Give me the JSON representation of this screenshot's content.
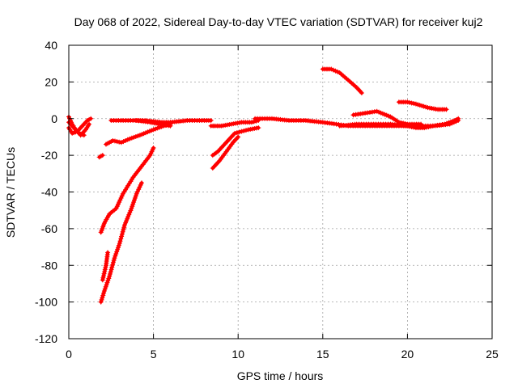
{
  "chart_data": {
    "type": "scatter",
    "title": "Day 068 of 2022, Sidereal Day-to-day VTEC variation (SDTVAR) for receiver kuj2",
    "xlabel": "GPS time / hours",
    "ylabel": "SDTVAR / TECUs",
    "xlim": [
      0,
      25
    ],
    "ylim": [
      -120,
      40
    ],
    "xticks": [
      0,
      5,
      10,
      15,
      20,
      25
    ],
    "yticks": [
      -120,
      -100,
      -80,
      -60,
      -40,
      -20,
      0,
      20,
      40
    ],
    "grid": true,
    "marker": "plus",
    "color": "#ff0000",
    "segments": [
      [
        [
          0.0,
          -5
        ],
        [
          0.2,
          -8
        ],
        [
          0.5,
          -7
        ],
        [
          0.8,
          -4
        ],
        [
          1.1,
          -1
        ],
        [
          1.3,
          0
        ]
      ],
      [
        [
          0.0,
          1
        ],
        [
          0.2,
          -3
        ],
        [
          0.4,
          -6
        ],
        [
          0.7,
          -9
        ],
        [
          1.0,
          -6
        ],
        [
          1.2,
          -3
        ]
      ],
      [
        [
          0.0,
          -2
        ],
        [
          0.3,
          -5
        ],
        [
          0.6,
          -8
        ],
        [
          0.9,
          -9
        ]
      ],
      [
        [
          1.8,
          -21
        ],
        [
          2.0,
          -20
        ]
      ],
      [
        [
          2.2,
          -14
        ],
        [
          2.6,
          -12
        ],
        [
          3.1,
          -13
        ],
        [
          3.6,
          -11
        ],
        [
          4.2,
          -9
        ],
        [
          5.0,
          -6
        ],
        [
          5.6,
          -4
        ],
        [
          6.0,
          -3
        ]
      ],
      [
        [
          2.5,
          -1
        ],
        [
          3.5,
          -1
        ],
        [
          4.5,
          -1
        ],
        [
          5.5,
          -2
        ],
        [
          6.0,
          -2
        ],
        [
          7.0,
          -1
        ],
        [
          8.0,
          -1
        ],
        [
          8.4,
          -1
        ]
      ],
      [
        [
          4.0,
          -1
        ],
        [
          4.8,
          -2
        ],
        [
          5.4,
          -3
        ],
        [
          6.0,
          -4
        ]
      ],
      [
        [
          1.9,
          -62
        ],
        [
          2.1,
          -57
        ],
        [
          2.4,
          -52
        ],
        [
          2.8,
          -49
        ],
        [
          3.2,
          -41
        ],
        [
          3.8,
          -32
        ],
        [
          4.3,
          -26
        ],
        [
          4.8,
          -20
        ],
        [
          5.0,
          -16
        ]
      ],
      [
        [
          1.9,
          -100
        ],
        [
          2.1,
          -94
        ],
        [
          2.4,
          -86
        ],
        [
          2.7,
          -76
        ],
        [
          3.0,
          -68
        ],
        [
          3.3,
          -58
        ],
        [
          3.7,
          -49
        ],
        [
          4.0,
          -41
        ],
        [
          4.3,
          -35
        ]
      ],
      [
        [
          2.0,
          -88
        ],
        [
          2.2,
          -80
        ],
        [
          2.3,
          -73
        ]
      ],
      [
        [
          8.5,
          -20
        ],
        [
          8.8,
          -18
        ],
        [
          9.2,
          -14
        ],
        [
          9.5,
          -11
        ],
        [
          9.8,
          -8
        ],
        [
          10.2,
          -7
        ],
        [
          10.6,
          -6
        ],
        [
          11.2,
          -5
        ]
      ],
      [
        [
          8.5,
          -27
        ],
        [
          8.9,
          -23
        ],
        [
          9.3,
          -18
        ],
        [
          9.7,
          -13
        ],
        [
          10.0,
          -10
        ]
      ],
      [
        [
          8.4,
          -4
        ],
        [
          9.0,
          -4
        ],
        [
          9.6,
          -3
        ],
        [
          10.2,
          -2
        ],
        [
          10.8,
          -2
        ],
        [
          11.2,
          -1
        ]
      ],
      [
        [
          11.0,
          0
        ],
        [
          12.0,
          0
        ],
        [
          13.0,
          -1
        ],
        [
          14.0,
          -1
        ],
        [
          15.0,
          -2
        ],
        [
          15.8,
          -3
        ],
        [
          16.5,
          -4
        ],
        [
          17.5,
          -4
        ],
        [
          18.5,
          -4
        ],
        [
          19.5,
          -4
        ],
        [
          20.5,
          -4
        ],
        [
          21.5,
          -4
        ],
        [
          22.5,
          -3
        ],
        [
          23.0,
          -1
        ]
      ],
      [
        [
          15.0,
          27
        ],
        [
          15.5,
          27
        ],
        [
          16.0,
          25
        ],
        [
          16.5,
          21
        ],
        [
          17.0,
          17
        ],
        [
          17.3,
          14
        ]
      ],
      [
        [
          16.8,
          2
        ],
        [
          17.5,
          3
        ],
        [
          18.2,
          4
        ],
        [
          19.0,
          1
        ],
        [
          19.5,
          -2
        ],
        [
          20.0,
          -3
        ],
        [
          20.8,
          -3
        ]
      ],
      [
        [
          19.5,
          9
        ],
        [
          20.0,
          9
        ],
        [
          20.5,
          8
        ],
        [
          21.2,
          6
        ],
        [
          21.8,
          5
        ],
        [
          22.3,
          5
        ]
      ],
      [
        [
          16.0,
          -4
        ],
        [
          17.0,
          -3
        ],
        [
          18.0,
          -3
        ],
        [
          19.0,
          -3
        ],
        [
          20.0,
          -4
        ],
        [
          20.5,
          -5
        ],
        [
          21.0,
          -5
        ],
        [
          21.5,
          -4
        ],
        [
          22.2,
          -3
        ],
        [
          22.8,
          -1
        ],
        [
          23.0,
          0
        ]
      ]
    ]
  }
}
